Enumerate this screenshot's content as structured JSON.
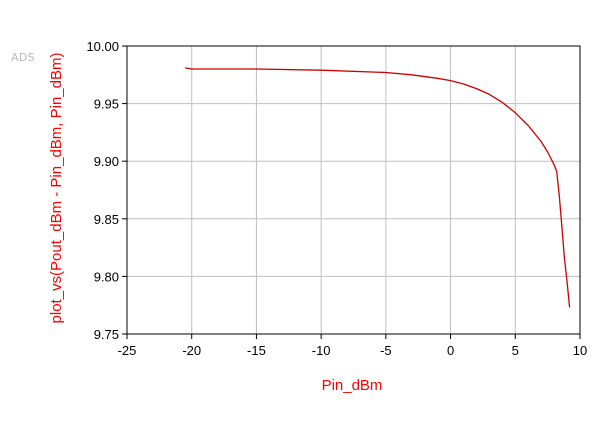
{
  "logo": "ADS",
  "chart_data": {
    "type": "line",
    "xlabel": "Pin_dBm",
    "ylabel": "plot_vs(Pout_dBm - Pin_dBm, Pin_dBm)",
    "xlim": [
      -25,
      10
    ],
    "ylim": [
      9.75,
      10.0
    ],
    "grid": true,
    "xticks": [
      {
        "value": -25,
        "label": "-25"
      },
      {
        "value": -20,
        "label": "-20"
      },
      {
        "value": -15,
        "label": "-15"
      },
      {
        "value": -10,
        "label": "-10"
      },
      {
        "value": -5,
        "label": "-5"
      },
      {
        "value": 0,
        "label": "0"
      },
      {
        "value": 5,
        "label": "5"
      },
      {
        "value": 10,
        "label": "10"
      }
    ],
    "yticks": [
      {
        "value": 9.75,
        "label": "9.75"
      },
      {
        "value": 9.8,
        "label": "9.80"
      },
      {
        "value": 9.85,
        "label": "9.85"
      },
      {
        "value": 9.9,
        "label": "9.90"
      },
      {
        "value": 9.95,
        "label": "9.95"
      },
      {
        "value": 10.0,
        "label": "10.00"
      }
    ],
    "series": [
      {
        "color": "#cc0000",
        "x": [
          -20.5,
          -20,
          -15,
          -10,
          -5,
          -3,
          -1,
          0,
          1,
          2,
          3,
          4,
          5,
          6,
          7,
          7.5,
          8,
          8.2,
          8.4,
          8.6,
          8.8,
          9.0,
          9.2
        ],
        "y": [
          9.981,
          9.98,
          9.98,
          9.979,
          9.977,
          9.975,
          9.972,
          9.97,
          9.967,
          9.963,
          9.958,
          9.951,
          9.942,
          9.931,
          9.917,
          9.908,
          9.897,
          9.891,
          9.87,
          9.843,
          9.815,
          9.795,
          9.773
        ]
      }
    ]
  }
}
